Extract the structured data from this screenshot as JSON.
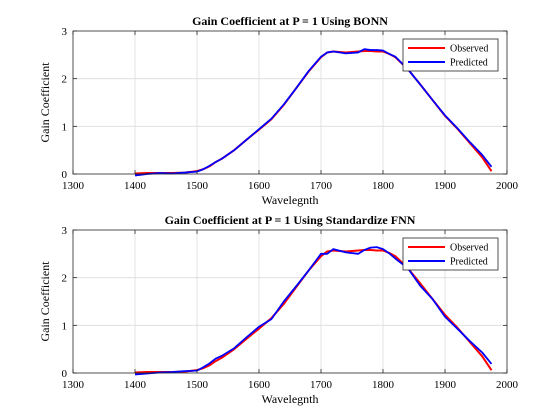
{
  "colors": {
    "observed": "#ff0000",
    "predicted": "#0000ff",
    "grid": "#dcdcdc",
    "axis": "#262626"
  },
  "chart_data": [
    {
      "type": "line",
      "title": "Gain Coefficient at P = 1 Using BONN",
      "xlabel": "Wavelegnth",
      "ylabel": "Gain Coefficient",
      "xlim": [
        1300,
        2000
      ],
      "ylim": [
        0,
        3
      ],
      "xticks": [
        1300,
        1400,
        1500,
        1600,
        1700,
        1800,
        1900,
        2000
      ],
      "yticks": [
        0,
        1,
        2,
        3
      ],
      "grid": true,
      "legend_position": "top-right",
      "series": [
        {
          "name": "Observed",
          "color": "#ff0000",
          "x": [
            1400,
            1420,
            1440,
            1460,
            1480,
            1500,
            1510,
            1520,
            1530,
            1540,
            1560,
            1580,
            1600,
            1620,
            1640,
            1660,
            1680,
            1700,
            1710,
            1720,
            1740,
            1760,
            1770,
            1780,
            1790,
            1800,
            1810,
            1820,
            1840,
            1860,
            1880,
            1900,
            1920,
            1940,
            1960,
            1975
          ],
          "y": [
            0.01,
            0.02,
            0.02,
            0.02,
            0.03,
            0.06,
            0.1,
            0.16,
            0.25,
            0.32,
            0.5,
            0.72,
            0.93,
            1.15,
            1.45,
            1.8,
            2.15,
            2.45,
            2.55,
            2.57,
            2.55,
            2.57,
            2.58,
            2.58,
            2.57,
            2.57,
            2.52,
            2.45,
            2.2,
            1.88,
            1.55,
            1.22,
            0.95,
            0.65,
            0.35,
            0.06
          ]
        },
        {
          "name": "Predicted",
          "color": "#0000ff",
          "x": [
            1400,
            1420,
            1440,
            1460,
            1480,
            1500,
            1510,
            1520,
            1530,
            1540,
            1560,
            1580,
            1600,
            1620,
            1640,
            1660,
            1680,
            1700,
            1710,
            1720,
            1740,
            1760,
            1770,
            1780,
            1790,
            1800,
            1810,
            1820,
            1840,
            1860,
            1880,
            1900,
            1920,
            1940,
            1960,
            1975
          ],
          "y": [
            -0.03,
            0.0,
            0.02,
            0.01,
            0.03,
            0.05,
            0.1,
            0.17,
            0.25,
            0.32,
            0.5,
            0.72,
            0.94,
            1.16,
            1.46,
            1.8,
            2.16,
            2.46,
            2.55,
            2.57,
            2.53,
            2.55,
            2.62,
            2.6,
            2.6,
            2.59,
            2.52,
            2.46,
            2.2,
            1.88,
            1.55,
            1.23,
            0.96,
            0.67,
            0.4,
            0.15
          ]
        }
      ]
    },
    {
      "type": "line",
      "title": "Gain Coefficient at P = 1 Using Standardize FNN",
      "xlabel": "Wavelegnth",
      "ylabel": "Gain Coefficient",
      "xlim": [
        1300,
        2000
      ],
      "ylim": [
        0,
        3
      ],
      "xticks": [
        1300,
        1400,
        1500,
        1600,
        1700,
        1800,
        1900,
        2000
      ],
      "yticks": [
        0,
        1,
        2,
        3
      ],
      "grid": true,
      "legend_position": "top-right",
      "series": [
        {
          "name": "Observed",
          "color": "#ff0000",
          "x": [
            1400,
            1420,
            1440,
            1460,
            1480,
            1500,
            1510,
            1520,
            1530,
            1540,
            1560,
            1580,
            1600,
            1620,
            1640,
            1660,
            1680,
            1700,
            1710,
            1720,
            1740,
            1760,
            1770,
            1780,
            1790,
            1800,
            1810,
            1820,
            1840,
            1860,
            1880,
            1900,
            1920,
            1940,
            1960,
            1975
          ],
          "y": [
            0.01,
            0.02,
            0.02,
            0.02,
            0.03,
            0.06,
            0.1,
            0.16,
            0.25,
            0.32,
            0.5,
            0.72,
            0.93,
            1.15,
            1.45,
            1.8,
            2.15,
            2.45,
            2.55,
            2.57,
            2.55,
            2.57,
            2.58,
            2.58,
            2.57,
            2.57,
            2.52,
            2.45,
            2.2,
            1.88,
            1.55,
            1.22,
            0.95,
            0.65,
            0.35,
            0.06
          ]
        },
        {
          "name": "Predicted",
          "color": "#0000ff",
          "x": [
            1400,
            1420,
            1440,
            1460,
            1480,
            1500,
            1510,
            1520,
            1530,
            1540,
            1560,
            1580,
            1600,
            1620,
            1640,
            1660,
            1680,
            1700,
            1710,
            1720,
            1740,
            1760,
            1770,
            1780,
            1790,
            1800,
            1810,
            1820,
            1840,
            1860,
            1880,
            1900,
            1920,
            1940,
            1960,
            1975
          ],
          "y": [
            -0.03,
            -0.01,
            0.01,
            0.02,
            0.04,
            0.05,
            0.12,
            0.2,
            0.3,
            0.36,
            0.52,
            0.75,
            0.97,
            1.13,
            1.5,
            1.82,
            2.15,
            2.5,
            2.5,
            2.6,
            2.53,
            2.5,
            2.58,
            2.63,
            2.64,
            2.6,
            2.51,
            2.4,
            2.2,
            1.83,
            1.55,
            1.18,
            0.93,
            0.67,
            0.43,
            0.19
          ]
        }
      ]
    }
  ]
}
